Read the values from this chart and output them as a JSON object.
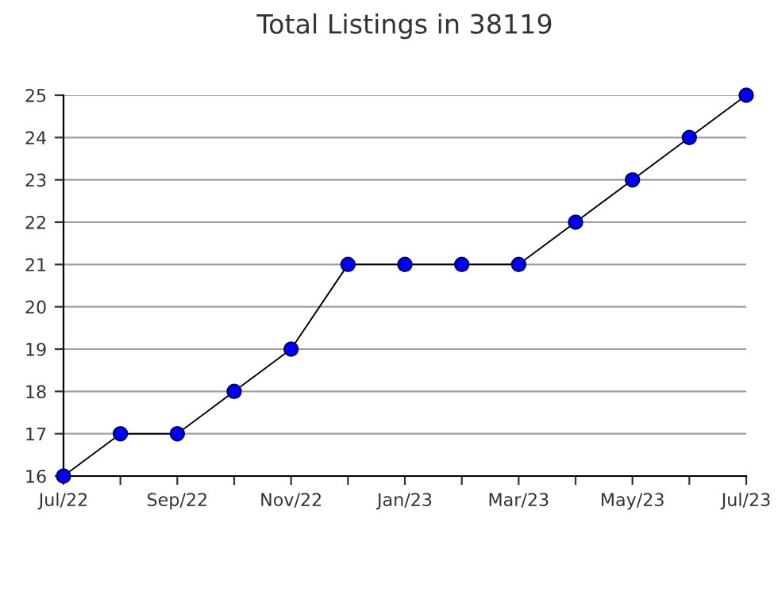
{
  "chart_data": {
    "type": "line",
    "title": "Total Listings in 38119",
    "categories": [
      "Jul/22",
      null,
      "Sep/22",
      null,
      "Nov/22",
      null,
      "Jan/23",
      null,
      "Mar/23",
      null,
      "May/23",
      null,
      "Jul/23"
    ],
    "series": [
      {
        "color": "#0000ff",
        "values": [
          16,
          17,
          17,
          18,
          19,
          21,
          21,
          21,
          21,
          22,
          23,
          24,
          25
        ]
      }
    ],
    "ylim": [
      16,
      25
    ],
    "yticks": [
      16,
      17,
      18,
      19,
      20,
      21,
      22,
      23,
      24,
      25
    ],
    "grid": "y",
    "marker": "circle",
    "line_style": "solid"
  }
}
